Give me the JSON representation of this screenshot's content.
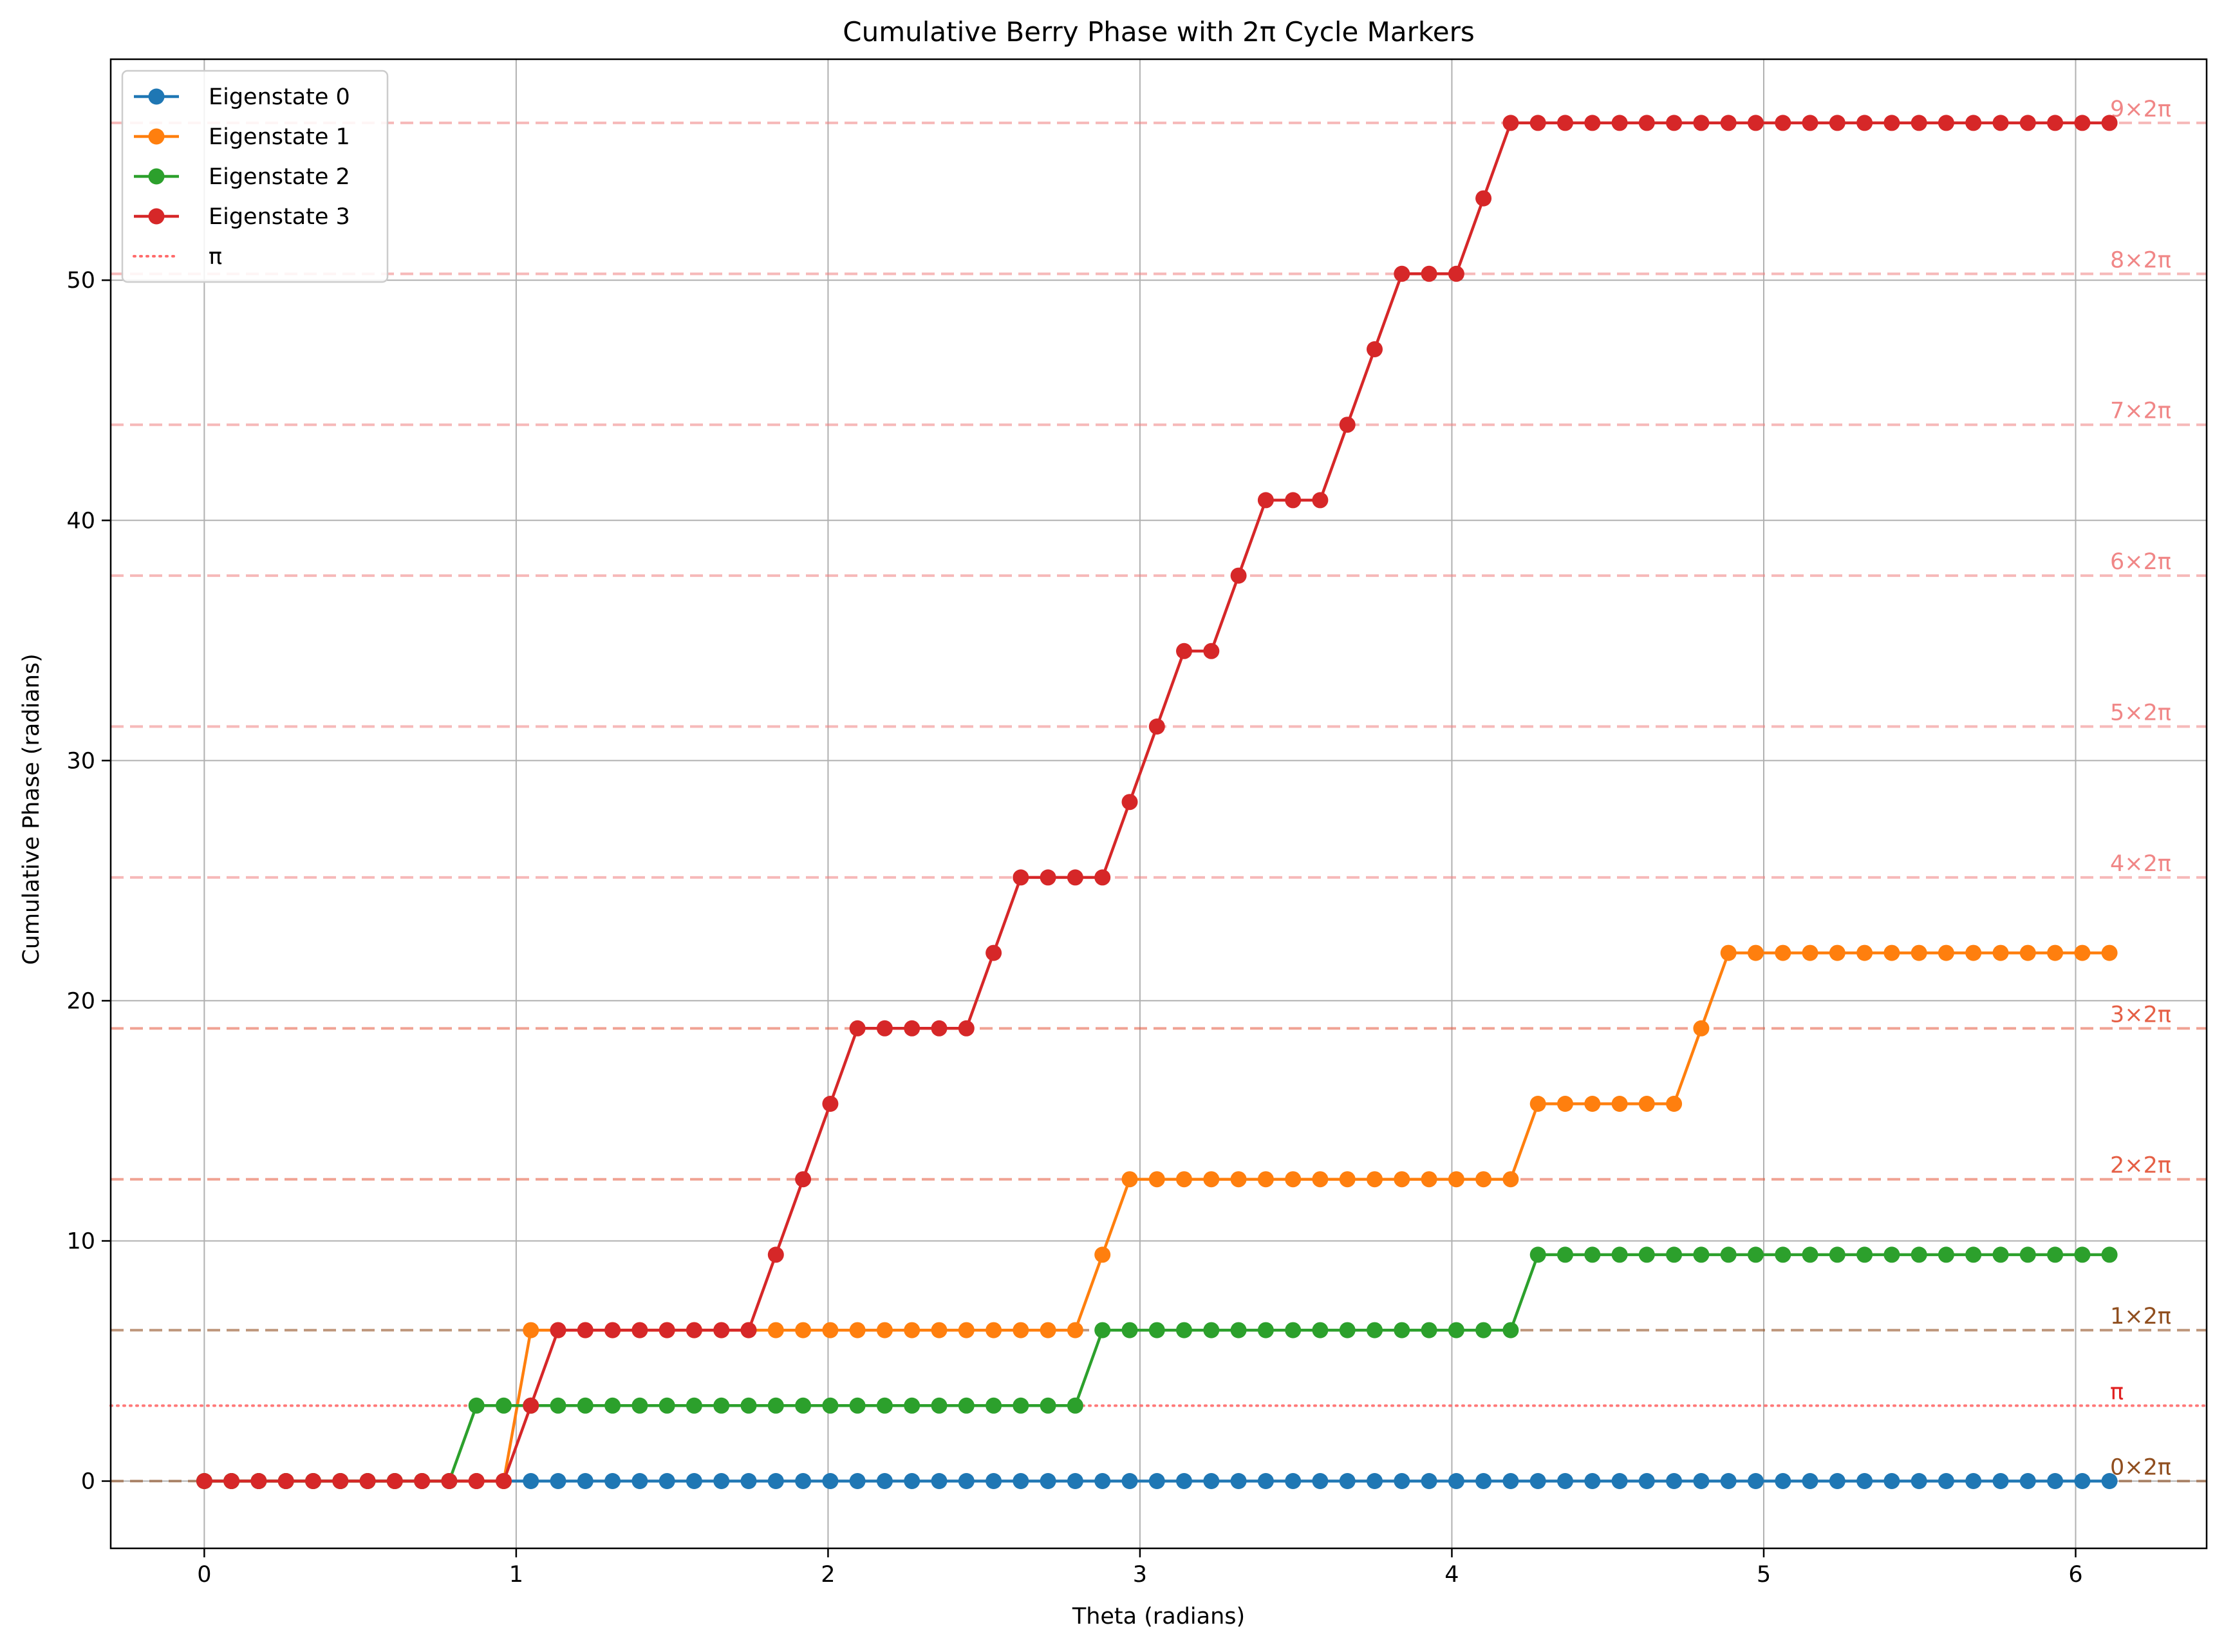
{
  "chart_data": {
    "type": "line",
    "title": "Cumulative Berry Phase with 2π Cycle Markers",
    "xlabel": "Theta (radians)",
    "ylabel": "Cumulative Phase (radians)",
    "xlim": [
      -0.3,
      6.42
    ],
    "ylim": [
      -2.8,
      59.2
    ],
    "grid": true,
    "legend_position": "top-left",
    "x_ticks": [
      0,
      1,
      2,
      3,
      4,
      5,
      6
    ],
    "y_ticks": [
      0,
      10,
      20,
      30,
      40,
      50
    ],
    "x_tick_labels": [
      "0",
      "1",
      "2",
      "3",
      "4",
      "5",
      "6"
    ],
    "y_tick_labels": [
      "0",
      "10",
      "20",
      "30",
      "40",
      "50"
    ],
    "x_start": 0,
    "x_step": 0.0872665,
    "series": [
      {
        "name": "Eigenstate 0",
        "color": "#1f77b4",
        "values": [
          0,
          0,
          0,
          0,
          0,
          0,
          0,
          0,
          0,
          0,
          0,
          0,
          0,
          0,
          0,
          0,
          0,
          0,
          0,
          0,
          0,
          0,
          0,
          0,
          0,
          0,
          0,
          0,
          0,
          0,
          0,
          0,
          0,
          0,
          0,
          0,
          0,
          0,
          0,
          0,
          0,
          0,
          0,
          0,
          0,
          0,
          0,
          0,
          0,
          0,
          0,
          0,
          0,
          0,
          0,
          0,
          0,
          0,
          0,
          0,
          0,
          0,
          0,
          0,
          0,
          0,
          0,
          0,
          0,
          0,
          0
        ]
      },
      {
        "name": "Eigenstate 1",
        "color": "#ff7f0e",
        "values": [
          0,
          0,
          0,
          0,
          0,
          0,
          0,
          0,
          0,
          0,
          0,
          0,
          6.283,
          6.283,
          6.283,
          6.283,
          6.283,
          6.283,
          6.283,
          6.283,
          6.283,
          6.283,
          6.283,
          6.283,
          6.283,
          6.283,
          6.283,
          6.283,
          6.283,
          6.283,
          6.283,
          6.283,
          6.283,
          9.425,
          12.566,
          12.566,
          12.566,
          12.566,
          12.566,
          12.566,
          12.566,
          12.566,
          12.566,
          12.566,
          12.566,
          12.566,
          12.566,
          12.566,
          12.566,
          15.708,
          15.708,
          15.708,
          15.708,
          15.708,
          15.708,
          18.85,
          21.991,
          21.991,
          21.991,
          21.991,
          21.991,
          21.991,
          21.991,
          21.991,
          21.991,
          21.991,
          21.991,
          21.991,
          21.991,
          21.991,
          21.991
        ]
      },
      {
        "name": "Eigenstate 2",
        "color": "#2ca02c",
        "values": [
          0,
          0,
          0,
          0,
          0,
          0,
          0,
          0,
          0,
          0,
          3.142,
          3.142,
          3.142,
          3.142,
          3.142,
          3.142,
          3.142,
          3.142,
          3.142,
          3.142,
          3.142,
          3.142,
          3.142,
          3.142,
          3.142,
          3.142,
          3.142,
          3.142,
          3.142,
          3.142,
          3.142,
          3.142,
          3.142,
          6.283,
          6.283,
          6.283,
          6.283,
          6.283,
          6.283,
          6.283,
          6.283,
          6.283,
          6.283,
          6.283,
          6.283,
          6.283,
          6.283,
          6.283,
          6.283,
          9.425,
          9.425,
          9.425,
          9.425,
          9.425,
          9.425,
          9.425,
          9.425,
          9.425,
          9.425,
          9.425,
          9.425,
          9.425,
          9.425,
          9.425,
          9.425,
          9.425,
          9.425,
          9.425,
          9.425,
          9.425,
          9.425
        ]
      },
      {
        "name": "Eigenstate 3",
        "color": "#d62728",
        "values": [
          0,
          0,
          0,
          0,
          0,
          0,
          0,
          0,
          0,
          0,
          0,
          0,
          3.142,
          6.283,
          6.283,
          6.283,
          6.283,
          6.283,
          6.283,
          6.283,
          6.283,
          9.425,
          12.566,
          15.708,
          18.85,
          18.85,
          18.85,
          18.85,
          18.85,
          21.991,
          25.133,
          25.133,
          25.133,
          25.133,
          28.274,
          31.416,
          34.558,
          34.558,
          37.699,
          40.841,
          40.841,
          40.841,
          43.982,
          47.124,
          50.265,
          50.265,
          50.265,
          53.407,
          56.549,
          56.549,
          56.549,
          56.549,
          56.549,
          56.549,
          56.549,
          56.549,
          56.549,
          56.549,
          56.549,
          56.549,
          56.549,
          56.549,
          56.549,
          56.549,
          56.549,
          56.549,
          56.549,
          56.549,
          56.549,
          56.549,
          56.549
        ]
      }
    ],
    "reference_lines": {
      "pi": {
        "value": 3.14159,
        "label": "π",
        "legend_label": "π",
        "color": "#ff6b6b"
      },
      "cycles": [
        {
          "value": 0,
          "label": "0×2π",
          "color": "#8b4513"
        },
        {
          "value": 6.28319,
          "label": "1×2π",
          "color": "#8b4513"
        },
        {
          "value": 12.56637,
          "label": "2×2π",
          "color": "#e4573c"
        },
        {
          "value": 18.84956,
          "label": "3×2π",
          "color": "#e4573c"
        },
        {
          "value": 25.13274,
          "label": "4×2π",
          "color": "#f08080"
        },
        {
          "value": 31.41593,
          "label": "5×2π",
          "color": "#f08080"
        },
        {
          "value": 37.69911,
          "label": "6×2π",
          "color": "#f08080"
        },
        {
          "value": 43.9823,
          "label": "7×2π",
          "color": "#f08080"
        },
        {
          "value": 50.26548,
          "label": "8×2π",
          "color": "#f08080"
        },
        {
          "value": 56.54867,
          "label": "9×2π",
          "color": "#f08080"
        }
      ]
    }
  }
}
